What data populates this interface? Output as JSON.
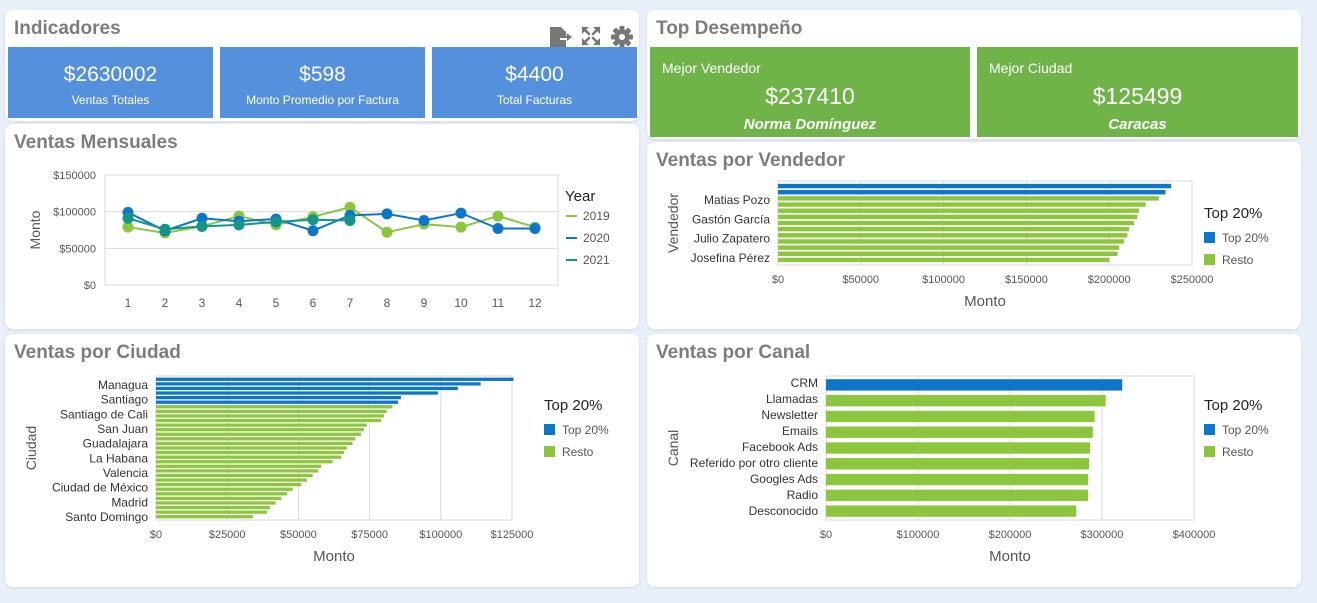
{
  "colors": {
    "blue_kpi": "#5590dc",
    "green": "#8cc63f",
    "blue": "#0e76c9",
    "teal": "#12958b",
    "green_card": "#6fb349"
  },
  "indicadores": {
    "title": "Indicadores",
    "toolbar": {
      "export_icon": "export-icon",
      "expand_icon": "expand-icon",
      "settings_icon": "gear-icon"
    },
    "kpis": [
      {
        "value": "$2630002",
        "label": "Ventas Totales"
      },
      {
        "value": "$598",
        "label": "Monto Promedio por Factura"
      },
      {
        "value": "$4400",
        "label": "Total Facturas"
      }
    ]
  },
  "top": {
    "title": "Top Desempeño",
    "cards": [
      {
        "label": "Mejor Vendedor",
        "value": "$237410",
        "name": "Norma Domínguez"
      },
      {
        "label": "Mejor Ciudad",
        "value": "$125499",
        "name": "Caracas"
      }
    ]
  },
  "mensuales": {
    "title": "Ventas Mensuales"
  },
  "vendedor": {
    "title": "Ventas por Vendedor"
  },
  "ciudad": {
    "title": "Ventas por Ciudad"
  },
  "canal": {
    "title": "Ventas por Canal"
  },
  "chart_data": [
    {
      "id": "ventas-mensuales",
      "type": "line",
      "title": "Ventas Mensuales",
      "xlabel": "",
      "ylabel": "Monto",
      "x": [
        1,
        2,
        3,
        4,
        5,
        6,
        7,
        8,
        9,
        10,
        11,
        12
      ],
      "x_tick_labels": [
        "1",
        "2",
        "3",
        "4",
        "5",
        "6",
        "7",
        "8",
        "9",
        "10",
        "11",
        "12"
      ],
      "ylim": [
        0,
        150000
      ],
      "y_ticks": [
        0,
        50000,
        100000,
        150000
      ],
      "y_tick_labels": [
        "$0",
        "$50000",
        "$100000",
        "$150000"
      ],
      "legend_title": "Year",
      "legend_position": "right",
      "series": [
        {
          "name": "2019",
          "color": "#8cc63f",
          "values": [
            79000,
            71000,
            80000,
            94000,
            82000,
            93000,
            106000,
            72000,
            83000,
            79000,
            94000,
            79000
          ]
        },
        {
          "name": "2020",
          "color": "#0e76c9",
          "values": [
            99000,
            74000,
            91000,
            87000,
            90000,
            74000,
            95000,
            97000,
            88000,
            98000,
            77000,
            77000
          ]
        },
        {
          "name": "2021",
          "color": "#12958b",
          "values": [
            91000,
            76000,
            80000,
            82000,
            86000,
            89000,
            88000,
            null,
            null,
            null,
            null,
            null
          ]
        }
      ]
    },
    {
      "id": "ventas-por-vendedor",
      "type": "bar",
      "orientation": "horizontal",
      "title": "Ventas por Vendedor",
      "xlabel": "Monto",
      "ylabel": "Vendedor",
      "xlim": [
        0,
        250000
      ],
      "x_ticks": [
        0,
        50000,
        100000,
        150000,
        200000,
        250000
      ],
      "x_tick_labels": [
        "$0",
        "$50000",
        "$100000",
        "$150000",
        "$200000",
        "$250000"
      ],
      "category_labels_shown": [
        "Matias Pozo",
        "Gastón García",
        "Julio Zapatero",
        "Josefina Pérez"
      ],
      "legend_title": "Top 20%",
      "legend": [
        {
          "name": "Top 20%",
          "color": "#0e76c9"
        },
        {
          "name": "Resto",
          "color": "#8cc63f"
        }
      ],
      "values": [
        237410,
        234000,
        230000,
        222000,
        218000,
        217000,
        215000,
        212000,
        211000,
        209000,
        206000,
        205000,
        200000
      ],
      "groups": [
        "top",
        "top",
        "resto",
        "resto",
        "resto",
        "resto",
        "resto",
        "resto",
        "resto",
        "resto",
        "resto",
        "resto",
        "resto"
      ]
    },
    {
      "id": "ventas-por-ciudad",
      "type": "bar",
      "orientation": "horizontal",
      "title": "Ventas por Ciudad",
      "xlabel": "Monto",
      "ylabel": "Ciudad",
      "xlim": [
        0,
        125000
      ],
      "x_ticks": [
        0,
        25000,
        50000,
        75000,
        100000,
        125000
      ],
      "x_tick_labels": [
        "$0",
        "$25000",
        "$50000",
        "$75000",
        "$100000",
        "$125000"
      ],
      "category_labels_shown": [
        "Managua",
        "Santiago",
        "Santiago de Cali",
        "San Juan",
        "Guadalajara",
        "La Habana",
        "Valencia",
        "Ciudad de México",
        "Madrid",
        "Santo Domingo"
      ],
      "legend_title": "Top 20%",
      "legend": [
        {
          "name": "Top 20%",
          "color": "#0e76c9"
        },
        {
          "name": "Resto",
          "color": "#8cc63f"
        }
      ],
      "values": [
        125499,
        114000,
        106000,
        99000,
        86000,
        85000,
        83000,
        81000,
        80000,
        79000,
        74000,
        73000,
        72000,
        70000,
        69000,
        67000,
        66000,
        65000,
        62000,
        58000,
        57000,
        55000,
        53000,
        51000,
        48000,
        46000,
        44000,
        42000,
        40000,
        39000,
        34000
      ],
      "groups": [
        "top",
        "top",
        "top",
        "top",
        "top",
        "top",
        "resto",
        "resto",
        "resto",
        "resto",
        "resto",
        "resto",
        "resto",
        "resto",
        "resto",
        "resto",
        "resto",
        "resto",
        "resto",
        "resto",
        "resto",
        "resto",
        "resto",
        "resto",
        "resto",
        "resto",
        "resto",
        "resto",
        "resto",
        "resto",
        "resto"
      ]
    },
    {
      "id": "ventas-por-canal",
      "type": "bar",
      "orientation": "horizontal",
      "title": "Ventas por Canal",
      "xlabel": "Monto",
      "ylabel": "Canal",
      "xlim": [
        0,
        400000
      ],
      "x_ticks": [
        0,
        100000,
        200000,
        300000,
        400000
      ],
      "x_tick_labels": [
        "$0",
        "$100000",
        "$200000",
        "$300000",
        "$400000"
      ],
      "categories": [
        "CRM",
        "Llamadas",
        "Newsletter",
        "Emails",
        "Facebook Ads",
        "Referido por otro cliente",
        "Googles Ads",
        "Radio",
        "Desconocido"
      ],
      "legend_title": "Top 20%",
      "legend": [
        {
          "name": "Top 20%",
          "color": "#0e76c9"
        },
        {
          "name": "Resto",
          "color": "#8cc63f"
        }
      ],
      "values": [
        322000,
        304000,
        292000,
        290000,
        287000,
        286000,
        285000,
        285000,
        272000
      ],
      "groups": [
        "top",
        "resto",
        "resto",
        "resto",
        "resto",
        "resto",
        "resto",
        "resto",
        "resto"
      ]
    }
  ]
}
